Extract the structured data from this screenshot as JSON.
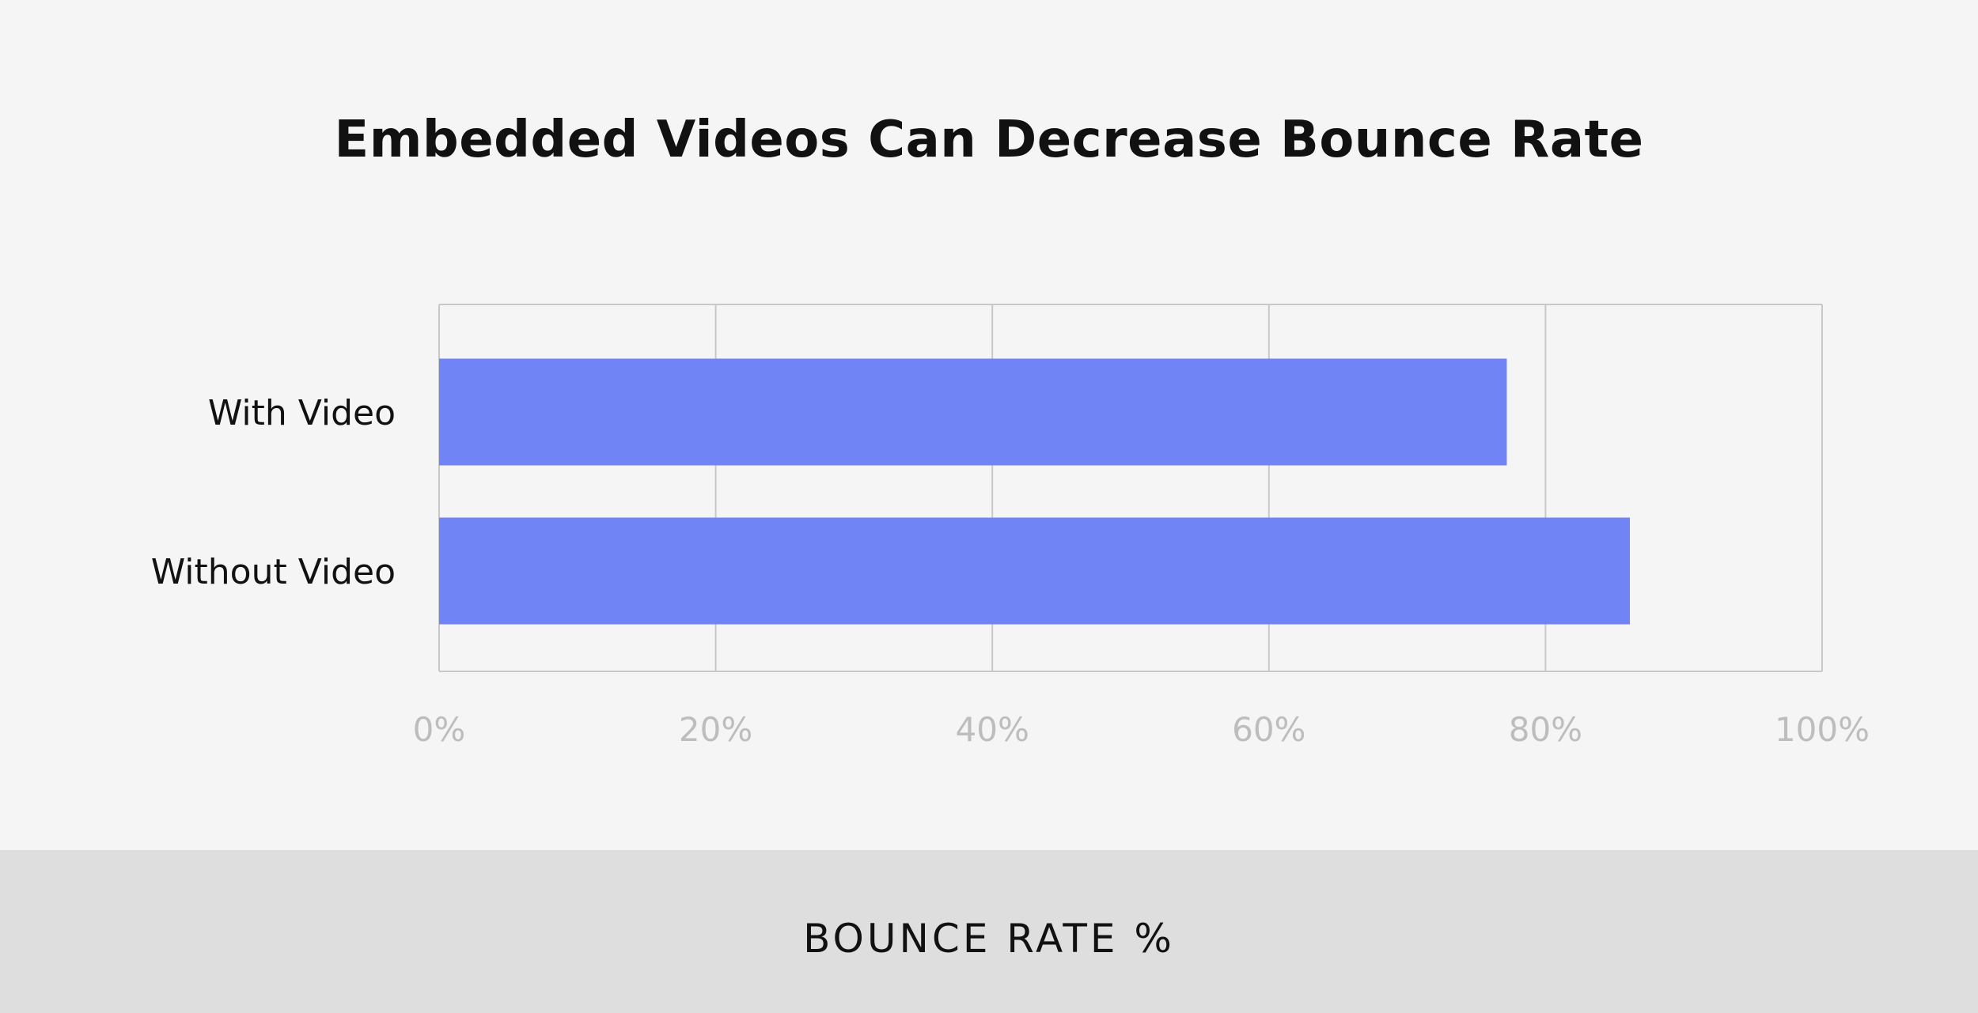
{
  "chart_data": {
    "type": "bar",
    "orientation": "horizontal",
    "title": "Embedded Videos Can Decrease Bounce Rate",
    "xlabel": "BOUNCE RATE %",
    "ylabel": "",
    "categories": [
      "With Video",
      "Without Video"
    ],
    "values": [
      77.2,
      86.1
    ],
    "unit": "%",
    "xlim": [
      0,
      100
    ],
    "x_ticks": [
      0,
      20,
      40,
      60,
      80,
      100
    ],
    "x_tick_labels": [
      "0%",
      "20%",
      "40%",
      "60%",
      "80%",
      "100%"
    ],
    "grid": true,
    "legend": "none",
    "colors": {
      "bar": "#7184f6",
      "grid": "#c8c8c8",
      "tick_label": "#bdbdbd",
      "text": "#111111",
      "background": "#f5f5f5",
      "footer_background": "#dedede"
    }
  }
}
